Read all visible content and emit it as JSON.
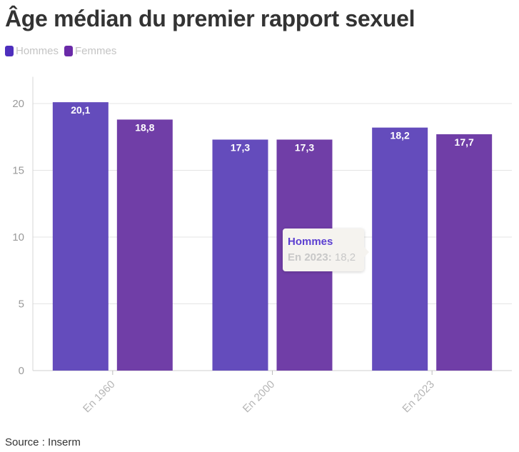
{
  "header": {
    "title": "Âge médian du premier rapport sexuel"
  },
  "legend": [
    {
      "label": "Hommes",
      "color": "#4e2fbd"
    },
    {
      "label": "Femmes",
      "color": "#6a2aa8"
    }
  ],
  "footer": {
    "source": "Source : Inserm"
  },
  "tooltip": {
    "series": "Hommes",
    "key": "En 2023:",
    "value": "18,2"
  },
  "chart_data": {
    "type": "bar",
    "categories": [
      "En 1960",
      "En 2000",
      "En 2023"
    ],
    "series": [
      {
        "name": "Hommes",
        "values": [
          20.1,
          17.3,
          18.2
        ],
        "labels": [
          "20,1",
          "17,3",
          "18,2"
        ],
        "color": "#644cbc"
      },
      {
        "name": "Femmes",
        "values": [
          18.8,
          17.3,
          17.7
        ],
        "labels": [
          "18,8",
          "17,3",
          "17,7"
        ],
        "color": "#703ea7"
      }
    ],
    "ylim": [
      0,
      22
    ],
    "yticks": [
      0,
      5,
      10,
      15,
      20
    ],
    "grid": true,
    "legend_position": "top-left"
  }
}
